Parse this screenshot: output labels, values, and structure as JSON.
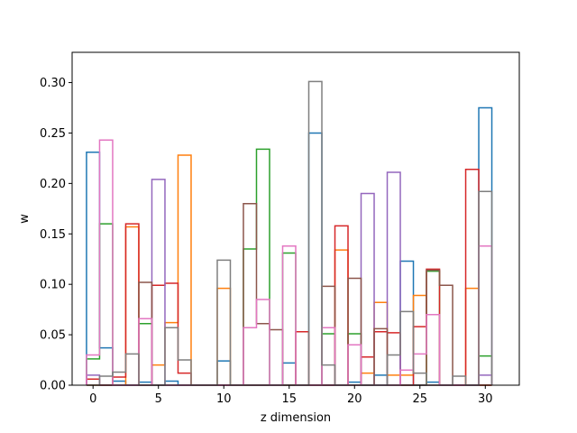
{
  "chart_data": {
    "type": "bar",
    "histtype": "step",
    "xlabel": "z dimension",
    "ylabel": "w",
    "xlim": [
      -1.6,
      32.6
    ],
    "ylim": [
      0,
      0.33
    ],
    "xticks": [
      0,
      5,
      10,
      15,
      20,
      25,
      30
    ],
    "yticks": [
      0.0,
      0.05,
      0.1,
      0.15,
      0.2,
      0.25,
      0.3
    ],
    "ytick_labels": [
      "0.00",
      "0.05",
      "0.10",
      "0.15",
      "0.20",
      "0.25",
      "0.30"
    ],
    "bin_width": 1,
    "bin_start": -0.5,
    "grid": false,
    "legend": "none",
    "series": [
      {
        "color": "#1f77b4",
        "values": [
          0.231,
          0.037,
          0.004,
          0.0,
          0.003,
          0.0,
          0.004,
          0.0,
          0.0,
          0.0,
          0.024,
          0.0,
          0.0,
          0.0,
          0.0,
          0.022,
          0.0,
          0.25,
          0.0,
          0.0,
          0.003,
          0.0,
          0.01,
          0.0,
          0.123,
          0.0,
          0.003,
          0.0,
          0.0,
          0.0,
          0.275
        ]
      },
      {
        "color": "#ff7f0e",
        "values": [
          0.0,
          0.0,
          0.0,
          0.157,
          0.0,
          0.02,
          0.062,
          0.228,
          0.0,
          0.0,
          0.096,
          0.0,
          0.0,
          0.0,
          0.0,
          0.0,
          0.0,
          0.0,
          0.0,
          0.134,
          0.0,
          0.012,
          0.082,
          0.01,
          0.01,
          0.089,
          0.0,
          0.0,
          0.0,
          0.096,
          0.0
        ]
      },
      {
        "color": "#2ca02c",
        "values": [
          0.026,
          0.16,
          0.0,
          0.0,
          0.061,
          0.0,
          0.0,
          0.0,
          0.0,
          0.0,
          0.0,
          0.0,
          0.135,
          0.234,
          0.0,
          0.131,
          0.0,
          0.0,
          0.051,
          0.0,
          0.051,
          0.0,
          0.0,
          0.0,
          0.0,
          0.0,
          0.113,
          0.0,
          0.0,
          0.0,
          0.029
        ]
      },
      {
        "color": "#d62728",
        "values": [
          0.006,
          0.0,
          0.008,
          0.16,
          0.0,
          0.099,
          0.101,
          0.012,
          0.0,
          0.0,
          0.0,
          0.0,
          0.0,
          0.0,
          0.0,
          0.0,
          0.053,
          0.0,
          0.0,
          0.158,
          0.0,
          0.028,
          0.053,
          0.052,
          0.0,
          0.058,
          0.115,
          0.0,
          0.0,
          0.214,
          0.0
        ]
      },
      {
        "color": "#9467bd",
        "values": [
          0.01,
          0.0,
          0.0,
          0.0,
          0.0,
          0.204,
          0.0,
          0.0,
          0.0,
          0.0,
          0.0,
          0.0,
          0.0,
          0.0,
          0.0,
          0.0,
          0.0,
          0.0,
          0.0,
          0.0,
          0.0,
          0.19,
          0.0,
          0.211,
          0.0,
          0.0,
          0.0,
          0.0,
          0.0,
          0.0,
          0.01
        ]
      },
      {
        "color": "#8c564b",
        "values": [
          0.0,
          0.0,
          0.0,
          0.0,
          0.102,
          0.0,
          0.0,
          0.0,
          0.0,
          0.0,
          0.0,
          0.0,
          0.18,
          0.061,
          0.055,
          0.0,
          0.0,
          0.0,
          0.098,
          0.0,
          0.106,
          0.0,
          0.056,
          0.0,
          0.0,
          0.0,
          0.114,
          0.099,
          0.0,
          0.0,
          0.0
        ]
      },
      {
        "color": "#e377c2",
        "values": [
          0.03,
          0.243,
          0.0,
          0.0,
          0.066,
          0.0,
          0.0,
          0.0,
          0.0,
          0.0,
          0.0,
          0.0,
          0.057,
          0.085,
          0.0,
          0.138,
          0.0,
          0.0,
          0.057,
          0.0,
          0.04,
          0.0,
          0.0,
          0.0,
          0.015,
          0.031,
          0.07,
          0.0,
          0.0,
          0.0,
          0.138
        ]
      },
      {
        "color": "#7f7f7f",
        "values": [
          0.0,
          0.009,
          0.013,
          0.031,
          0.0,
          0.0,
          0.057,
          0.025,
          0.0,
          0.0,
          0.124,
          0.0,
          0.0,
          0.0,
          0.0,
          0.0,
          0.0,
          0.301,
          0.02,
          0.0,
          0.0,
          0.0,
          0.0,
          0.03,
          0.073,
          0.012,
          0.0,
          0.0,
          0.009,
          0.0,
          0.192
        ]
      }
    ]
  }
}
